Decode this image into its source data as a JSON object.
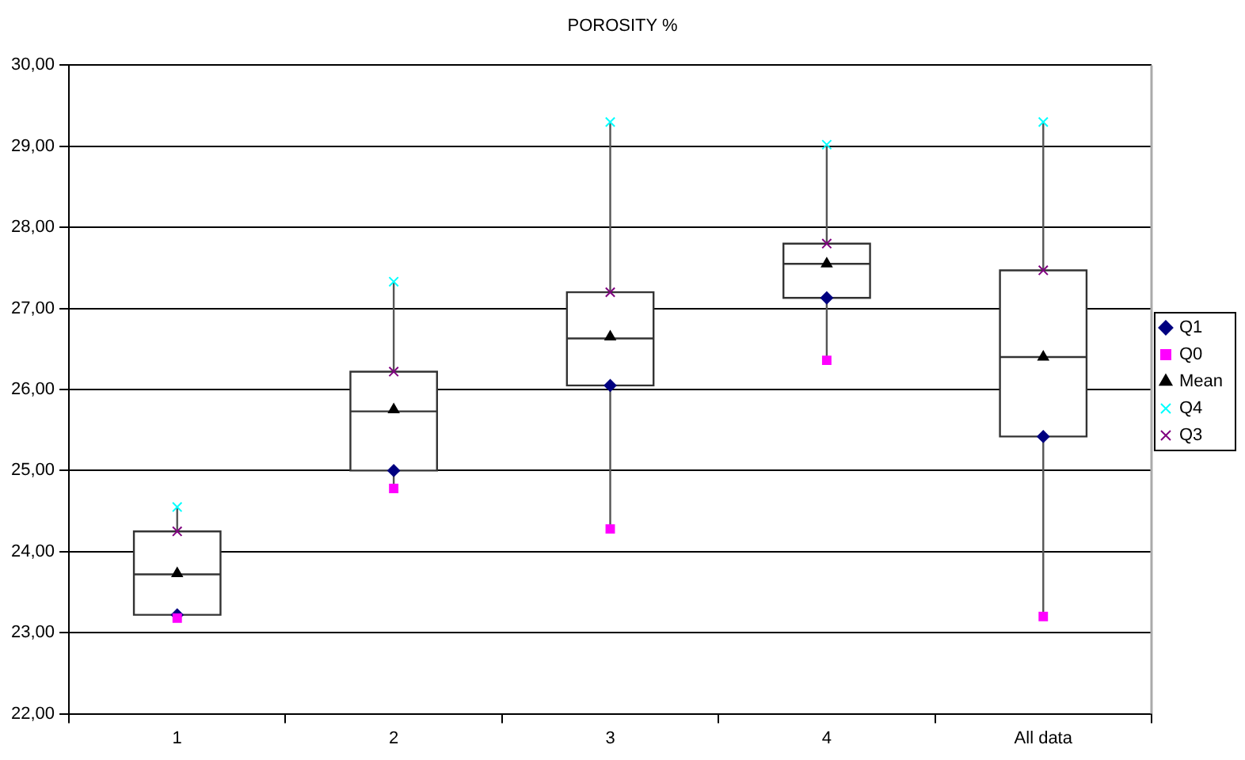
{
  "chart_data": {
    "type": "box",
    "title": "POROSITY %",
    "categories": [
      "1",
      "2",
      "3",
      "4",
      "All data"
    ],
    "boxes": [
      {
        "low": 23.18,
        "q1": 23.22,
        "median": 23.72,
        "q3": 24.25,
        "high": 24.55
      },
      {
        "low": 24.78,
        "q1": 25.0,
        "median": 25.73,
        "q3": 26.22,
        "high": 27.33
      },
      {
        "low": 24.28,
        "q1": 26.05,
        "median": 26.63,
        "q3": 27.2,
        "high": 29.3
      },
      {
        "low": 26.36,
        "q1": 27.13,
        "median": 27.55,
        "q3": 27.8,
        "high": 29.02
      },
      {
        "low": 23.2,
        "q1": 25.42,
        "median": 26.4,
        "q3": 27.47,
        "high": 29.3
      }
    ],
    "series": [
      {
        "name": "Q1",
        "type": "scatter",
        "marker": "diamond",
        "color": "#000080",
        "x": [
          "1",
          "2",
          "3",
          "4",
          "All data"
        ],
        "values": [
          23.22,
          25.0,
          26.05,
          27.13,
          25.42
        ]
      },
      {
        "name": "Q0",
        "type": "scatter",
        "marker": "square",
        "color": "#ff00ff",
        "x": [
          "1",
          "2",
          "3",
          "4",
          "All data"
        ],
        "values": [
          23.18,
          24.78,
          24.28,
          26.36,
          23.2
        ]
      },
      {
        "name": "Mean",
        "type": "scatter",
        "marker": "triangle",
        "color": "#000000",
        "x": [
          "1",
          "2",
          "3",
          "4",
          "All data"
        ],
        "values": [
          23.73,
          25.75,
          26.65,
          27.55,
          26.4
        ]
      },
      {
        "name": "Q4",
        "type": "scatter",
        "marker": "cross",
        "color": "#00ffff",
        "x": [
          "1",
          "2",
          "3",
          "4",
          "All data"
        ],
        "values": [
          24.55,
          27.33,
          29.3,
          29.02,
          29.3
        ]
      },
      {
        "name": "Q3",
        "type": "scatter",
        "marker": "cross",
        "color": "#800080",
        "x": [
          "1",
          "2",
          "3",
          "4",
          "All data"
        ],
        "values": [
          24.25,
          26.22,
          27.2,
          27.8,
          27.47
        ]
      }
    ],
    "ylim": [
      22,
      30
    ],
    "yticks": [
      {
        "value": 22,
        "label": "22,00"
      },
      {
        "value": 23,
        "label": "23,00"
      },
      {
        "value": 24,
        "label": "24,00"
      },
      {
        "value": 25,
        "label": "25,00"
      },
      {
        "value": 26,
        "label": "26,00"
      },
      {
        "value": 27,
        "label": "27,00"
      },
      {
        "value": 28,
        "label": "28,00"
      },
      {
        "value": 29,
        "label": "29,00"
      },
      {
        "value": 30,
        "label": "30,00"
      }
    ],
    "grid": "y",
    "legend": "right"
  }
}
